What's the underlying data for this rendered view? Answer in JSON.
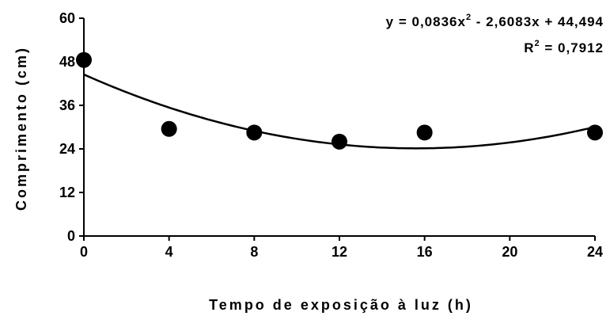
{
  "chart_data": {
    "type": "scatter",
    "xlabel": "Tempo de exposição à luz (h)",
    "ylabel": "Comprimento (cm)",
    "xlim": [
      0,
      24
    ],
    "ylim": [
      0,
      60
    ],
    "x_ticks": [
      "0",
      "4",
      "8",
      "12",
      "16",
      "20",
      "24"
    ],
    "y_ticks": [
      "0",
      "12",
      "24",
      "36",
      "48",
      "60"
    ],
    "grid": false,
    "points": [
      {
        "x": 0,
        "y": 48.5
      },
      {
        "x": 4,
        "y": 29.5
      },
      {
        "x": 8,
        "y": 28.5
      },
      {
        "x": 12,
        "y": 26.0
      },
      {
        "x": 16,
        "y": 28.5
      },
      {
        "x": 24,
        "y": 28.5
      }
    ],
    "trendline": {
      "type": "polynomial",
      "coefficients": [
        0.0836,
        -2.6083,
        44.494
      ]
    },
    "annotations": {
      "equation_pre": "y = 0,0836x",
      "equation_sup": "2",
      "equation_post": " - 2,6083x + 44,494",
      "r2_pre": "R",
      "r2_sup": "2",
      "r2_post": " = 0,7912"
    },
    "colors": {
      "marker": "#000000",
      "line": "#000000",
      "axis": "#000000"
    }
  }
}
